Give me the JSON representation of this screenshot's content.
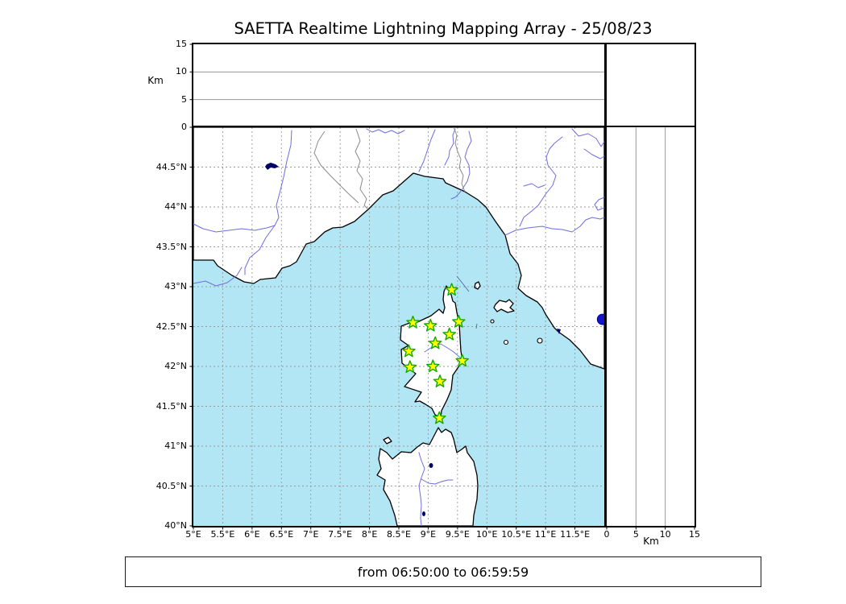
{
  "title": "SAETTA Realtime Lightning Mapping Array - 25/08/23",
  "footer": {
    "text": "from 06:50:00 to 06:59:59"
  },
  "alt_axis": {
    "label": "Km",
    "ticks": [
      0,
      5,
      10,
      15
    ],
    "max": 15,
    "gridlines": [
      5,
      10
    ]
  },
  "map_axes": {
    "lon_min": 5,
    "lon_max": 12,
    "lat_min": 40,
    "lat_max": 45,
    "lon_ticks": {
      "values": [
        5,
        5.5,
        6,
        6.5,
        7,
        7.5,
        8,
        8.5,
        9,
        9.5,
        10,
        10.5,
        11,
        11.5
      ],
      "labels": [
        "5°E",
        "5.5°E",
        "6°E",
        "6.5°E",
        "7°E",
        "7.5°E",
        "8°E",
        "8.5°E",
        "9°E",
        "9.5°E",
        "10°E",
        "10.5°E",
        "11°E",
        "11.5°E"
      ]
    },
    "lat_ticks": {
      "values": [
        40,
        40.5,
        41,
        41.5,
        42,
        42.5,
        43,
        43.5,
        44,
        44.5
      ],
      "labels": [
        "40°N",
        "40.5°N",
        "41°N",
        "41.5°N",
        "42°N",
        "42.5°N",
        "43°N",
        "43.5°N",
        "44°N",
        "44.5°N"
      ]
    },
    "grid_step_deg": 0.5
  },
  "colors": {
    "sea": "#b2e6f5",
    "land": "#ffffff",
    "coast": "#000000",
    "river": "#6e6edd",
    "borderline": "#8a8a8a",
    "grid": "#999999",
    "star_fill": "#ffff00",
    "star_edge": "#11aa00",
    "lake": "#000066",
    "event_marker": "#1515cc"
  },
  "chart_data": {
    "type": "scatter",
    "title": "SAETTA Realtime Lightning Mapping Array - 25/08/23",
    "time_window": "from 06:50:00 to 06:59:59",
    "panels": [
      {
        "name": "altitude_vs_longitude",
        "xlim": [
          5,
          12
        ],
        "ylim": [
          0,
          15
        ],
        "ylabel": "Km",
        "yticks": [
          0,
          5,
          10,
          15
        ],
        "grid_y": [
          5,
          10
        ],
        "points": []
      },
      {
        "name": "map",
        "xlim_lon": [
          5,
          12
        ],
        "ylim_lat": [
          40,
          45
        ],
        "grid": "0.5 degree dashed",
        "series": [
          {
            "name": "lma_stations",
            "marker": "star",
            "points": [
              [
                9.4,
                42.96
              ],
              [
                8.74,
                42.55
              ],
              [
                9.04,
                42.51
              ],
              [
                9.52,
                42.56
              ],
              [
                9.36,
                42.4
              ],
              [
                9.12,
                42.29
              ],
              [
                8.67,
                42.19
              ],
              [
                9.58,
                42.07
              ],
              [
                8.69,
                41.99
              ],
              [
                9.08,
                42.0
              ],
              [
                9.2,
                41.81
              ],
              [
                9.19,
                41.35
              ]
            ]
          },
          {
            "name": "edge_marker",
            "marker": "circle",
            "points": [
              [
                11.97,
                42.59
              ]
            ]
          }
        ]
      },
      {
        "name": "altitude_vs_latitude",
        "xlim": [
          0,
          15
        ],
        "ylim": [
          40,
          45
        ],
        "xlabel": "Km",
        "xticks": [
          0,
          5,
          10,
          15
        ],
        "grid_x": [
          5,
          10
        ],
        "points": []
      }
    ]
  }
}
